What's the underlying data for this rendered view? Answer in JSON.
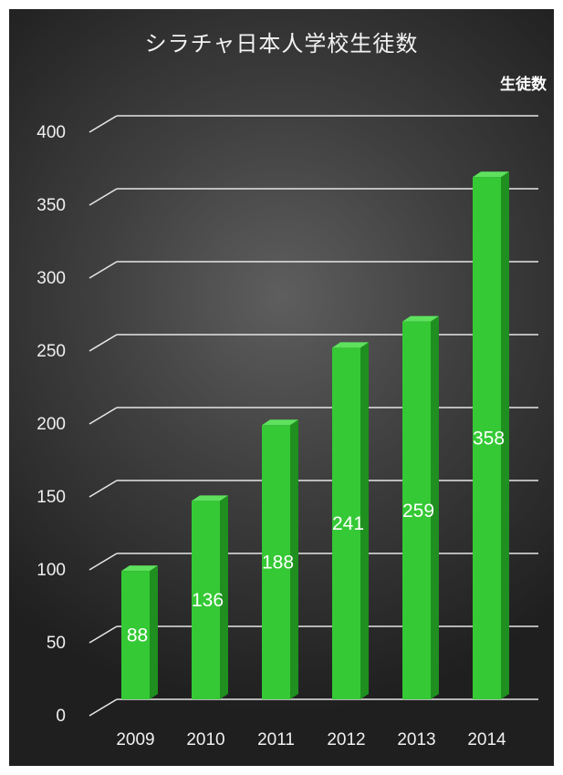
{
  "chart_data": {
    "type": "bar",
    "title": "シラチャ日本人学校生徒数",
    "ylabel": "生徒数",
    "xlabel": "",
    "categories": [
      "2009",
      "2010",
      "2011",
      "2012",
      "2013",
      "2014"
    ],
    "values": [
      88,
      136,
      188,
      241,
      259,
      358
    ],
    "ylim": [
      0,
      400
    ],
    "yticks": [
      "0",
      "50",
      "100",
      "150",
      "200",
      "250",
      "300",
      "350",
      "400"
    ],
    "grid": true,
    "legend": "none",
    "colors": {
      "bar_front": "#35c935",
      "bar_side": "#1f8f1f",
      "bar_top": "#5ee25e",
      "gridline": "#e6e6e6"
    }
  }
}
